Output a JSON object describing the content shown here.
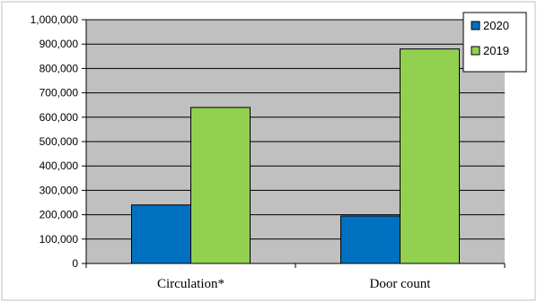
{
  "chart_data": {
    "type": "bar",
    "title": "",
    "xlabel": "",
    "ylabel": "",
    "categories": [
      "Circulation*",
      "Door count"
    ],
    "series": [
      {
        "name": "2020",
        "color": "#0070C0",
        "values": [
          240000,
          195000
        ]
      },
      {
        "name": "2019",
        "color": "#92D050",
        "values": [
          640000,
          880000
        ]
      }
    ],
    "ylim": [
      0,
      1000000
    ],
    "y_ticks": [
      "0",
      "100,000",
      "200,000",
      "300,000",
      "400,000",
      "500,000",
      "600,000",
      "700,000",
      "800,000",
      "900,000",
      "1,000,000"
    ],
    "grid": true,
    "plot_background": "#C0C0C0",
    "legend_position": "top-right"
  }
}
